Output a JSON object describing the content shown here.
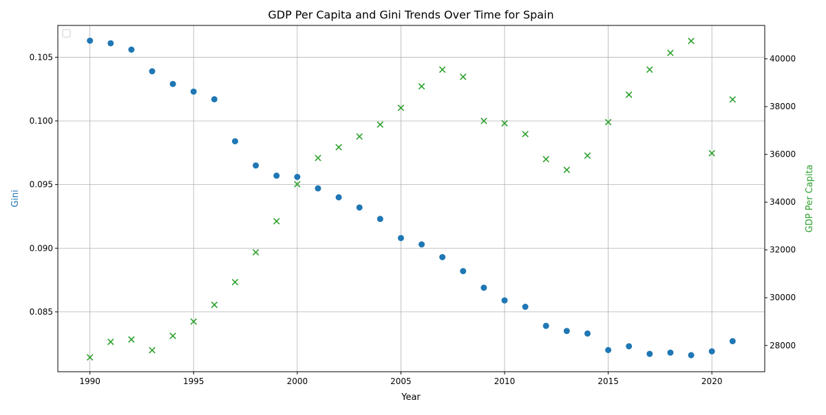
{
  "chart_data": {
    "type": "scatter",
    "title": "GDP Per Capita and Gini Trends Over Time for Spain",
    "xlabel": "Year",
    "ylabel_left": "Gini",
    "ylabel_right": "GDP Per Capita",
    "x": [
      1990,
      1991,
      1992,
      1993,
      1994,
      1995,
      1996,
      1997,
      1998,
      1999,
      2000,
      2001,
      2002,
      2003,
      2004,
      2005,
      2006,
      2007,
      2008,
      2009,
      2010,
      2011,
      2012,
      2013,
      2014,
      2015,
      2016,
      2017,
      2018,
      2019,
      2020,
      2021
    ],
    "xlim": [
      1988.45,
      2022.55
    ],
    "xticks": [
      1990,
      1995,
      2000,
      2005,
      2010,
      2015,
      2020
    ],
    "ylim_left": [
      0.0803,
      0.1075
    ],
    "yticks_left": [
      "0.085",
      "0.090",
      "0.095",
      "0.100",
      "0.105"
    ],
    "ylim_right": [
      26900,
      41400
    ],
    "yticks_right": [
      "28000",
      "30000",
      "32000",
      "34000",
      "36000",
      "38000",
      "40000"
    ],
    "grid": true,
    "legend": "top-left (empty)",
    "series": [
      {
        "axis": "left",
        "marker": "circle",
        "color": "#1f77b4",
        "values": [
          0.1063,
          0.1061,
          0.1056,
          0.1039,
          0.1029,
          0.1023,
          0.1017,
          0.0984,
          0.0965,
          0.0957,
          0.0956,
          0.0947,
          0.094,
          0.0932,
          0.0923,
          0.0908,
          0.0903,
          0.0893,
          0.0882,
          0.0869,
          0.0859,
          0.0854,
          0.0839,
          0.0835,
          0.0833,
          0.082,
          0.0823,
          0.0817,
          0.0818,
          0.0816,
          0.0819,
          0.0827
        ]
      },
      {
        "axis": "right",
        "marker": "x",
        "color": "#2ca02c",
        "values": [
          27500,
          28150,
          28250,
          27800,
          28400,
          29000,
          29700,
          30650,
          31900,
          33200,
          34750,
          35850,
          36300,
          36750,
          37250,
          37950,
          38850,
          39550,
          39250,
          37400,
          37300,
          36850,
          35800,
          35350,
          35950,
          37350,
          38500,
          39550,
          40250,
          40750,
          36050,
          38300
        ]
      }
    ]
  }
}
